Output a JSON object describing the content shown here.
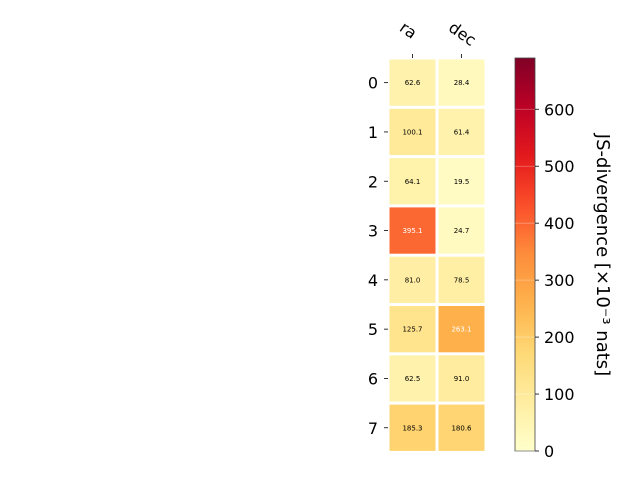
{
  "chart_data": {
    "type": "heatmap",
    "columns": [
      "ra",
      "dec"
    ],
    "rows": [
      "0",
      "1",
      "2",
      "3",
      "4",
      "5",
      "6",
      "7"
    ],
    "values": [
      [
        62.6,
        28.4
      ],
      [
        100.1,
        61.4
      ],
      [
        64.1,
        19.5
      ],
      [
        395.1,
        24.7
      ],
      [
        81.0,
        78.5
      ],
      [
        125.7,
        263.1
      ],
      [
        62.5,
        91.0
      ],
      [
        185.3,
        180.6
      ]
    ],
    "cell_labels": [
      [
        "62.6",
        "28.4"
      ],
      [
        "100.1",
        "61.4"
      ],
      [
        "64.1",
        "19.5"
      ],
      [
        "395.1",
        "24.7"
      ],
      [
        "81.0",
        "78.5"
      ],
      [
        "125.7",
        "263.1"
      ],
      [
        "62.5",
        "91.0"
      ],
      [
        "185.3",
        "180.6"
      ]
    ],
    "colormap": "YlOrRd",
    "vmin": 0,
    "vmax": 690,
    "colorbar": {
      "label": "JS-divergence [×10⁻³ nats]",
      "ticks": [
        0,
        100,
        200,
        300,
        400,
        500,
        600
      ],
      "tick_labels": [
        "0",
        "100",
        "200",
        "300",
        "400",
        "500",
        "600"
      ]
    },
    "grid": false
  }
}
